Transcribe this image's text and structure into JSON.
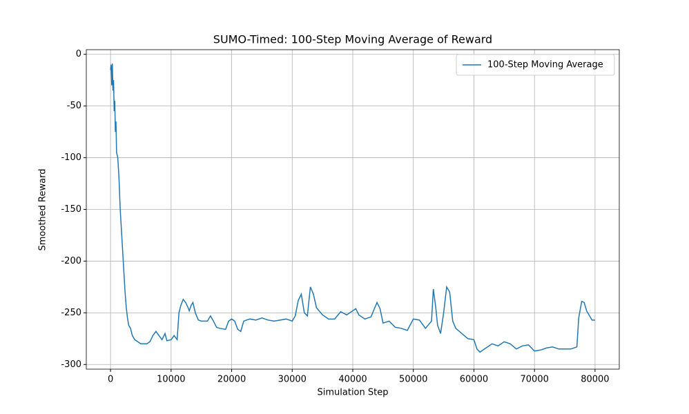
{
  "chart_data": {
    "type": "line",
    "title": "SUMO-Timed: 100-Step Moving Average of Reward",
    "x_label": "Simulation Step",
    "y_label": "Smoothed Reward",
    "xlim": [
      -4000,
      84000
    ],
    "ylim": [
      -304.5,
      4.5
    ],
    "xticks": [
      0,
      10000,
      20000,
      30000,
      40000,
      50000,
      60000,
      70000,
      80000
    ],
    "yticks": [
      0,
      -50,
      -100,
      -150,
      -200,
      -250,
      -300
    ],
    "grid": true,
    "legend": "upper right",
    "x": [
      0,
      100,
      200,
      300,
      400,
      500,
      600,
      700,
      800,
      900,
      1000,
      1200,
      1400,
      1600,
      1800,
      2000,
      2200,
      2400,
      2600,
      2800,
      3000,
      3300,
      3600,
      4000,
      4500,
      5000,
      6000,
      6500,
      7000,
      7500,
      8000,
      8500,
      9000,
      9300,
      10000,
      10500,
      11000,
      11300,
      11600,
      12000,
      12400,
      12800,
      13000,
      13300,
      13600,
      14000,
      14500,
      15000,
      16000,
      16500,
      17000,
      17500,
      18000,
      19000,
      19500,
      20000,
      20500,
      21000,
      21500,
      22000,
      23000,
      24000,
      25000,
      26000,
      27000,
      28000,
      29000,
      30000,
      30500,
      31000,
      31500,
      32000,
      32500,
      33000,
      33500,
      34000,
      35000,
      36000,
      37000,
      38000,
      39000,
      40000,
      40500,
      41000,
      42000,
      43000,
      44000,
      44500,
      45000,
      46000,
      47000,
      48000,
      49000,
      50000,
      51000,
      52000,
      53000,
      53300,
      53700,
      54000,
      54500,
      55000,
      55500,
      56000,
      56500,
      57000,
      58000,
      59000,
      60000,
      60500,
      61000,
      62000,
      63000,
      64000,
      65000,
      66000,
      67000,
      68000,
      69000,
      70000,
      71000,
      72000,
      73000,
      74000,
      75000,
      76000,
      77000,
      77300,
      77800,
      78200,
      78600,
      79000,
      79500,
      80000
    ],
    "series": [
      {
        "name": "100-Step Moving Average",
        "color": "#1f77b4",
        "values": [
          -15,
          -10,
          -30,
          -9,
          -35,
          -25,
          -55,
          -45,
          -75,
          -65,
          -95,
          -100,
          -120,
          -150,
          -170,
          -190,
          -210,
          -230,
          -245,
          -255,
          -262,
          -265,
          -272,
          -276,
          -278,
          -280,
          -280,
          -278,
          -272,
          -268,
          -272,
          -276,
          -270,
          -277,
          -276,
          -272,
          -276,
          -250,
          -243,
          -237,
          -240,
          -245,
          -248,
          -243,
          -240,
          -250,
          -257,
          -258,
          -258,
          -253,
          -258,
          -264,
          -265,
          -266,
          -258,
          -256,
          -258,
          -266,
          -268,
          -258,
          -256,
          -257,
          -255,
          -257,
          -258,
          -257,
          -256,
          -258,
          -253,
          -238,
          -232,
          -250,
          -253,
          -225,
          -232,
          -245,
          -252,
          -256,
          -256,
          -249,
          -252,
          -248,
          -246,
          -252,
          -256,
          -254,
          -240,
          -246,
          -260,
          -258,
          -264,
          -265,
          -267,
          -256,
          -257,
          -265,
          -258,
          -227,
          -245,
          -262,
          -270,
          -250,
          -225,
          -230,
          -258,
          -265,
          -270,
          -275,
          -276,
          -285,
          -288,
          -284,
          -280,
          -282,
          -278,
          -280,
          -285,
          -282,
          -281,
          -287,
          -286,
          -284,
          -283,
          -285,
          -285,
          -285,
          -283,
          -255,
          -239,
          -240,
          -248,
          -252,
          -257,
          -257
        ]
      }
    ]
  }
}
